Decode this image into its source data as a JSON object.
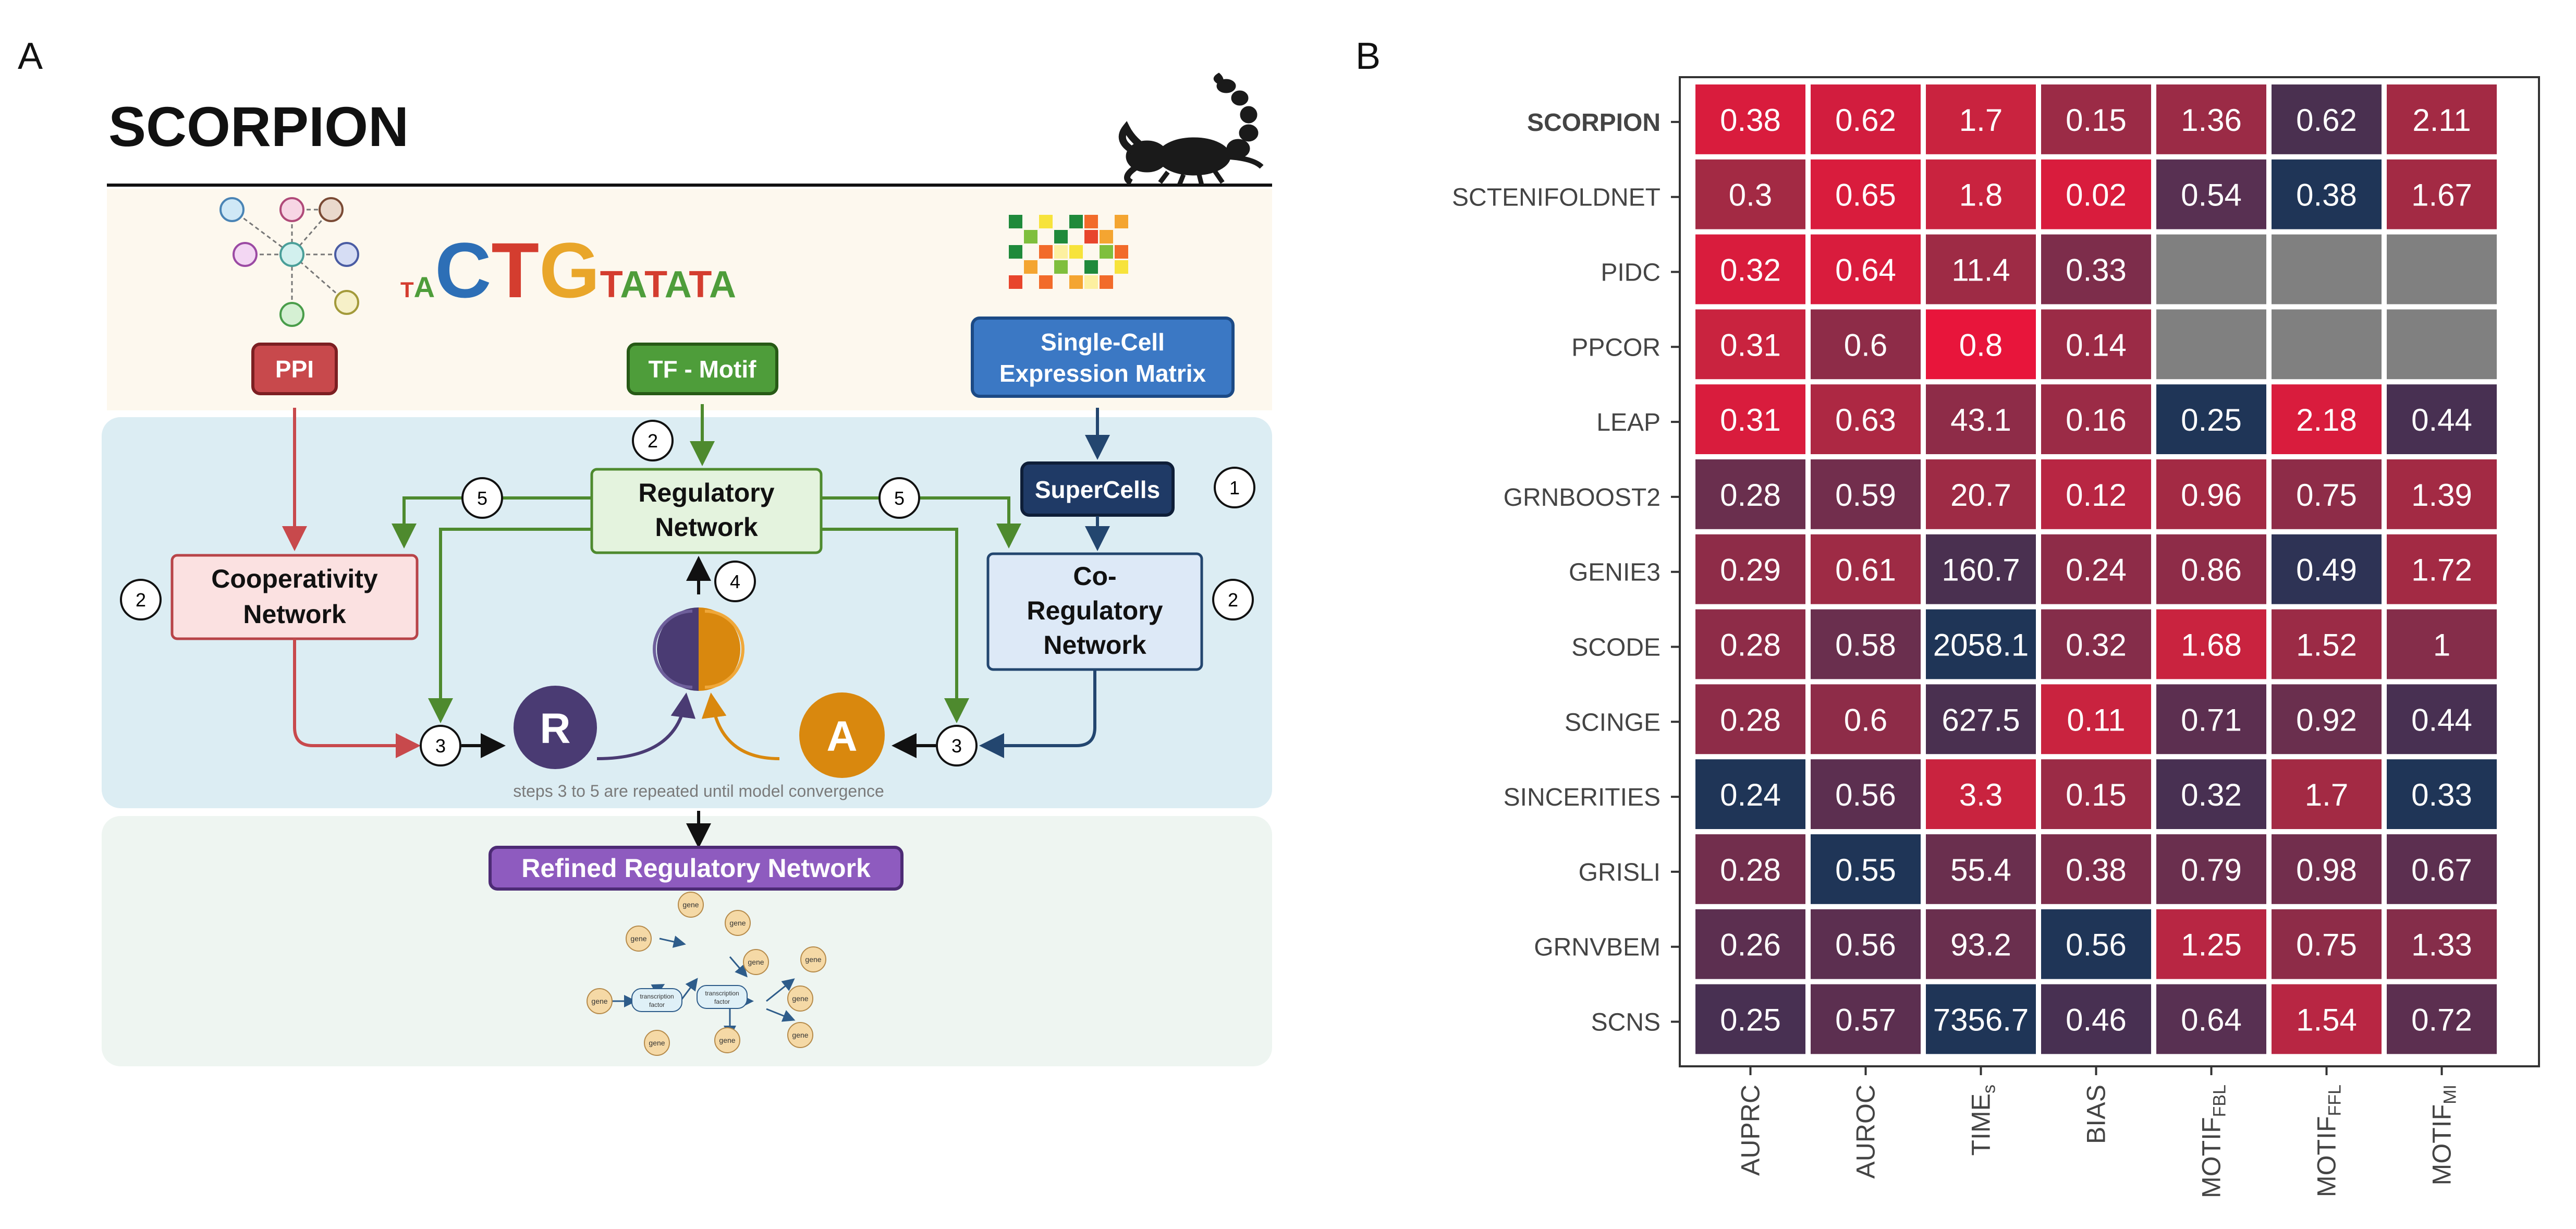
{
  "panel_a": {
    "panel_letter": "A",
    "title": "SCORPION",
    "inputs": {
      "ppi": "PPI",
      "motif": "TF - Motif",
      "expr_line1": "Single-Cell",
      "expr_line2": "Expression Matrix"
    },
    "dna_letters": [
      "T",
      "A",
      "C",
      "T",
      "G",
      "T",
      "A",
      "T",
      "A",
      "T",
      "A"
    ],
    "nodes": {
      "supercells": "SuperCells",
      "regulatory_line1": "Regulatory",
      "regulatory_line2": "Network",
      "cooperativity_line1": "Cooperativity",
      "cooperativity_line2": "Network",
      "coreg_line1": "Co-",
      "coreg_line2": "Regulatory",
      "coreg_line3": "Network",
      "r": "R",
      "a": "A"
    },
    "steps": {
      "supercells": "1",
      "motif": "2",
      "cooperativity": "2",
      "coregulatory": "2",
      "left_three": "3",
      "right_three": "3",
      "update": "4",
      "left_five": "5",
      "right_five": "5"
    },
    "convergence_note": "steps 3 to 5 are repeated until model convergence",
    "output": "Refined Regulatory Network",
    "mini_network": {
      "gene": "gene",
      "tf_line1": "transcription",
      "tf_line2": "factor"
    },
    "colors": {
      "ppi": "#c8494c",
      "motif": "#4e9d3a",
      "expression": "#3b78c4",
      "supercells": "#1f3a66",
      "output": "#8e5bbf",
      "r": "#4a3b73",
      "a": "#d9880e"
    }
  },
  "panel_b": {
    "panel_letter": "B",
    "chart_data": {
      "type": "heatmap",
      "rows": [
        "SCORPION",
        "SCTENIFOLDNET",
        "PIDC",
        "PPCOR",
        "LEAP",
        "GRNBOOST2",
        "GENIE3",
        "SCODE",
        "SCINGE",
        "SINCERITIES",
        "GRISLI",
        "GRNVBEM",
        "SCNS"
      ],
      "columns": [
        {
          "label": "AUPRC",
          "sub": ""
        },
        {
          "label": "AUROC",
          "sub": ""
        },
        {
          "label": "TIME",
          "sub": "s"
        },
        {
          "label": "BIAS",
          "sub": ""
        },
        {
          "label": "MOTIF",
          "sub": "FBL"
        },
        {
          "label": "MOTIF",
          "sub": "FFL"
        },
        {
          "label": "MOTIF",
          "sub": "MI"
        }
      ],
      "values": [
        [
          "0.38",
          "0.62",
          "1.7",
          "0.15",
          "1.36",
          "0.62",
          "2.11"
        ],
        [
          "0.3",
          "0.65",
          "1.8",
          "0.02",
          "0.54",
          "0.38",
          "1.67"
        ],
        [
          "0.32",
          "0.64",
          "11.4",
          "0.33",
          "",
          "",
          ""
        ],
        [
          "0.31",
          "0.6",
          "0.8",
          "0.14",
          "",
          "",
          ""
        ],
        [
          "0.31",
          "0.63",
          "43.1",
          "0.16",
          "0.25",
          "2.18",
          "0.44"
        ],
        [
          "0.28",
          "0.59",
          "20.7",
          "0.12",
          "0.96",
          "0.75",
          "1.39"
        ],
        [
          "0.29",
          "0.61",
          "160.7",
          "0.24",
          "0.86",
          "0.49",
          "1.72"
        ],
        [
          "0.28",
          "0.58",
          "2058.1",
          "0.32",
          "1.68",
          "1.52",
          "1"
        ],
        [
          "0.28",
          "0.6",
          "627.5",
          "0.11",
          "0.71",
          "0.92",
          "0.44"
        ],
        [
          "0.24",
          "0.56",
          "3.3",
          "0.15",
          "0.32",
          "1.7",
          "0.33"
        ],
        [
          "0.28",
          "0.55",
          "55.4",
          "0.38",
          "0.79",
          "0.98",
          "0.67"
        ],
        [
          "0.26",
          "0.56",
          "93.2",
          "0.56",
          "1.25",
          "0.75",
          "1.33"
        ],
        [
          "0.25",
          "0.57",
          "7356.7",
          "0.46",
          "0.64",
          "1.54",
          "0.72"
        ]
      ],
      "cell_colors": [
        [
          "#d91c3d",
          "#d21d3e",
          "#c9233f",
          "#9b2b46",
          "#9b2b46",
          "#4a3050",
          "#a32a44"
        ],
        [
          "#a32a44",
          "#d91c3d",
          "#c9233f",
          "#d91c3d",
          "#583052",
          "#1f3557",
          "#a32a44"
        ],
        [
          "#d91c3d",
          "#d91c3d",
          "#9e2b45",
          "#7d2d4b",
          "#808080",
          "#808080",
          "#808080"
        ],
        [
          "#c9233f",
          "#8e2c48",
          "#e8153b",
          "#9b2b46",
          "#808080",
          "#808080",
          "#808080"
        ],
        [
          "#d91c3d",
          "#ad2843",
          "#8e2c48",
          "#9b2b46",
          "#1f3557",
          "#d91c3d",
          "#483052"
        ],
        [
          "#6a2f4e",
          "#722e4d",
          "#9e2b45",
          "#b82643",
          "#a32a44",
          "#8e2c48",
          "#a32a44"
        ],
        [
          "#8e2c48",
          "#9e2b45",
          "#4a3050",
          "#8e2c48",
          "#8e2c48",
          "#2e3355",
          "#a32a44"
        ],
        [
          "#8e2c48",
          "#6a2f4e",
          "#1f3557",
          "#852d4a",
          "#c9233f",
          "#9b2b46",
          "#852d4a"
        ],
        [
          "#8e2c48",
          "#8e2c48",
          "#4a3050",
          "#c9233f",
          "#5c2f50",
          "#6a2f4e",
          "#483052"
        ],
        [
          "#1f3557",
          "#5c2f50",
          "#c9233f",
          "#9b2b46",
          "#483052",
          "#a32a44",
          "#1f3557"
        ],
        [
          "#722e4d",
          "#1f3557",
          "#6a2f4e",
          "#7d2d4b",
          "#6a2f4e",
          "#722e4d",
          "#5c2f50"
        ],
        [
          "#5c2f50",
          "#5c2f50",
          "#6a2f4e",
          "#1f3557",
          "#b82643",
          "#8e2c48",
          "#852d4a"
        ],
        [
          "#483052",
          "#5c2f50",
          "#1f3557",
          "#483052",
          "#583052",
          "#b82643",
          "#5c2f50"
        ]
      ],
      "bold_row": "SCORPION",
      "legend": "none",
      "grid": false
    }
  }
}
